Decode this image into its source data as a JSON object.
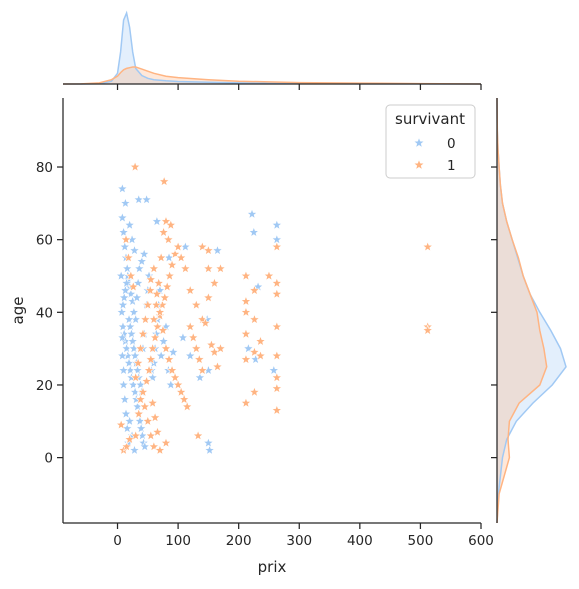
{
  "chart_data": {
    "type": "scatter",
    "subtype": "jointplot",
    "xlabel": "prix",
    "ylabel": "age",
    "xlim": [
      -90,
      600
    ],
    "ylim": [
      -18,
      99
    ],
    "xticks": [
      "0",
      "100",
      "200",
      "300",
      "400",
      "500",
      "600"
    ],
    "yticks": [
      "0",
      "20",
      "40",
      "60",
      "80"
    ],
    "marker": "star",
    "legend": {
      "title": "survivant",
      "placement": "upper-right",
      "entries": [
        "0",
        "1"
      ]
    },
    "series": [
      {
        "label": "0",
        "color": "#a1c9f4",
        "points": [
          [
            8,
            74
          ],
          [
            13,
            70
          ],
          [
            35,
            71
          ],
          [
            48,
            71
          ],
          [
            65,
            65
          ],
          [
            85,
            55
          ],
          [
            112,
            58
          ],
          [
            165,
            57
          ],
          [
            222,
            67
          ],
          [
            225,
            62
          ],
          [
            263,
            64
          ],
          [
            263,
            60
          ],
          [
            8,
            66
          ],
          [
            10,
            62
          ],
          [
            12,
            58
          ],
          [
            14,
            55
          ],
          [
            16,
            52
          ],
          [
            18,
            49
          ],
          [
            20,
            47
          ],
          [
            22,
            45
          ],
          [
            25,
            43
          ],
          [
            27,
            40
          ],
          [
            30,
            38
          ],
          [
            9,
            36
          ],
          [
            11,
            34
          ],
          [
            13,
            32
          ],
          [
            15,
            30
          ],
          [
            17,
            28
          ],
          [
            19,
            26
          ],
          [
            21,
            24
          ],
          [
            23,
            22
          ],
          [
            26,
            20
          ],
          [
            29,
            18
          ],
          [
            31,
            16
          ],
          [
            33,
            14
          ],
          [
            35,
            12
          ],
          [
            37,
            10
          ],
          [
            39,
            8
          ],
          [
            41,
            6
          ],
          [
            43,
            4
          ],
          [
            45,
            3
          ],
          [
            7,
            40
          ],
          [
            9,
            42
          ],
          [
            11,
            44
          ],
          [
            13,
            46
          ],
          [
            15,
            48
          ],
          [
            17,
            50
          ],
          [
            19,
            38
          ],
          [
            21,
            36
          ],
          [
            23,
            34
          ],
          [
            25,
            32
          ],
          [
            27,
            30
          ],
          [
            29,
            28
          ],
          [
            31,
            26
          ],
          [
            33,
            24
          ],
          [
            35,
            22
          ],
          [
            38,
            20
          ],
          [
            40,
            18
          ],
          [
            42,
            30
          ],
          [
            44,
            34
          ],
          [
            46,
            38
          ],
          [
            48,
            42
          ],
          [
            50,
            46
          ],
          [
            52,
            50
          ],
          [
            54,
            27
          ],
          [
            56,
            24
          ],
          [
            58,
            22
          ],
          [
            60,
            26
          ],
          [
            62,
            30
          ],
          [
            64,
            34
          ],
          [
            66,
            38
          ],
          [
            68,
            42
          ],
          [
            70,
            46
          ],
          [
            72,
            28
          ],
          [
            76,
            32
          ],
          [
            80,
            36
          ],
          [
            84,
            24
          ],
          [
            88,
            20
          ],
          [
            92,
            29
          ],
          [
            108,
            33
          ],
          [
            120,
            28
          ],
          [
            136,
            22
          ],
          [
            150,
            24
          ],
          [
            152,
            2
          ],
          [
            150,
            4
          ],
          [
            148,
            38
          ],
          [
            216,
            30
          ],
          [
            228,
            27
          ],
          [
            232,
            47
          ],
          [
            258,
            24
          ],
          [
            10,
            20
          ],
          [
            12,
            16
          ],
          [
            14,
            12
          ],
          [
            16,
            8
          ],
          [
            18,
            4
          ],
          [
            8,
            28
          ],
          [
            10,
            24
          ],
          [
            6,
            50
          ],
          [
            8,
            33
          ],
          [
            20,
            10
          ],
          [
            24,
            6
          ],
          [
            28,
            2
          ],
          [
            32,
            44
          ],
          [
            34,
            48
          ],
          [
            36,
            52
          ],
          [
            40,
            54
          ],
          [
            44,
            56
          ],
          [
            20,
            64
          ],
          [
            24,
            60
          ],
          [
            28,
            57
          ]
        ]
      },
      {
        "label": "1",
        "color": "#ffb482",
        "points": [
          [
            29,
            80
          ],
          [
            77,
            76
          ],
          [
            512,
            58
          ],
          [
            512,
            36
          ],
          [
            512,
            35
          ],
          [
            6,
            9
          ],
          [
            10,
            2
          ],
          [
            15,
            3
          ],
          [
            20,
            5
          ],
          [
            30,
            6
          ],
          [
            35,
            12
          ],
          [
            38,
            16
          ],
          [
            42,
            18
          ],
          [
            48,
            21
          ],
          [
            52,
            24
          ],
          [
            55,
            27
          ],
          [
            58,
            30
          ],
          [
            62,
            33
          ],
          [
            66,
            36
          ],
          [
            70,
            39
          ],
          [
            74,
            42
          ],
          [
            78,
            44
          ],
          [
            82,
            47
          ],
          [
            86,
            50
          ],
          [
            90,
            53
          ],
          [
            95,
            56
          ],
          [
            100,
            58
          ],
          [
            105,
            55
          ],
          [
            112,
            52
          ],
          [
            120,
            46
          ],
          [
            130,
            42
          ],
          [
            140,
            38
          ],
          [
            150,
            44
          ],
          [
            160,
            48
          ],
          [
            170,
            52
          ],
          [
            55,
            49
          ],
          [
            60,
            52
          ],
          [
            65,
            45
          ],
          [
            70,
            40
          ],
          [
            75,
            35
          ],
          [
            80,
            30
          ],
          [
            85,
            27
          ],
          [
            90,
            24
          ],
          [
            95,
            22
          ],
          [
            100,
            20
          ],
          [
            105,
            18
          ],
          [
            110,
            16
          ],
          [
            115,
            14
          ],
          [
            120,
            36
          ],
          [
            125,
            33
          ],
          [
            130,
            30
          ],
          [
            135,
            27
          ],
          [
            140,
            24
          ],
          [
            145,
            37
          ],
          [
            155,
            31
          ],
          [
            160,
            29
          ],
          [
            165,
            25
          ],
          [
            170,
            30
          ],
          [
            45,
            14
          ],
          [
            50,
            10
          ],
          [
            55,
            6
          ],
          [
            60,
            3
          ],
          [
            70,
            2
          ],
          [
            80,
            4
          ],
          [
            133,
            6
          ],
          [
            140,
            58
          ],
          [
            150,
            57
          ],
          [
            150,
            52
          ],
          [
            212,
            50
          ],
          [
            226,
            46
          ],
          [
            250,
            50
          ],
          [
            263,
            48
          ],
          [
            263,
            45
          ],
          [
            212,
            43
          ],
          [
            212,
            40
          ],
          [
            226,
            38
          ],
          [
            236,
            32
          ],
          [
            212,
            34
          ],
          [
            212,
            27
          ],
          [
            263,
            36
          ],
          [
            226,
            29
          ],
          [
            236,
            28
          ],
          [
            263,
            28
          ],
          [
            263,
            22
          ],
          [
            263,
            19
          ],
          [
            226,
            18
          ],
          [
            212,
            15
          ],
          [
            263,
            13
          ],
          [
            263,
            58
          ],
          [
            60,
            38
          ],
          [
            64,
            42
          ],
          [
            68,
            48
          ],
          [
            72,
            55
          ],
          [
            76,
            62
          ],
          [
            80,
            65
          ],
          [
            84,
            60
          ],
          [
            88,
            64
          ],
          [
            30,
            22
          ],
          [
            34,
            26
          ],
          [
            38,
            30
          ],
          [
            42,
            34
          ],
          [
            46,
            38
          ],
          [
            50,
            42
          ],
          [
            54,
            46
          ],
          [
            58,
            15
          ],
          [
            62,
            11
          ],
          [
            66,
            7
          ],
          [
            26,
            47
          ],
          [
            22,
            50
          ],
          [
            18,
            55
          ],
          [
            14,
            60
          ]
        ]
      }
    ],
    "kde_top": {
      "x": [
        -90,
        -60,
        -30,
        -10,
        0,
        5,
        10,
        15,
        20,
        25,
        30,
        40,
        50,
        60,
        80,
        100,
        150,
        200,
        250,
        300,
        400,
        500,
        600
      ],
      "series0": [
        0,
        0.0,
        0.3,
        4,
        15,
        45,
        90,
        100,
        80,
        45,
        22,
        12,
        8,
        6,
        4.5,
        3.5,
        2.5,
        1.5,
        0.9,
        0.5,
        0.2,
        0.1,
        0
      ],
      "series1": [
        0,
        0.2,
        1.5,
        6,
        11,
        16,
        20,
        22,
        23,
        24,
        24,
        21,
        18,
        15,
        11,
        9,
        6,
        4,
        3,
        2,
        1.2,
        0.5,
        0
      ]
    },
    "kde_right": {
      "y": [
        -18,
        -10,
        0,
        5,
        10,
        15,
        20,
        25,
        30,
        35,
        40,
        45,
        50,
        55,
        60,
        65,
        70,
        75,
        80,
        85,
        90,
        99
      ],
      "series0": [
        0,
        2,
        8,
        14,
        28,
        52,
        80,
        100,
        92,
        78,
        62,
        48,
        38,
        30,
        22,
        14,
        8,
        5,
        3,
        1.5,
        0.5,
        0
      ],
      "series1": [
        0,
        3,
        18,
        16,
        18,
        32,
        62,
        72,
        68,
        62,
        58,
        48,
        38,
        31,
        22,
        14,
        8,
        5,
        3,
        1.5,
        0.5,
        0
      ]
    }
  }
}
